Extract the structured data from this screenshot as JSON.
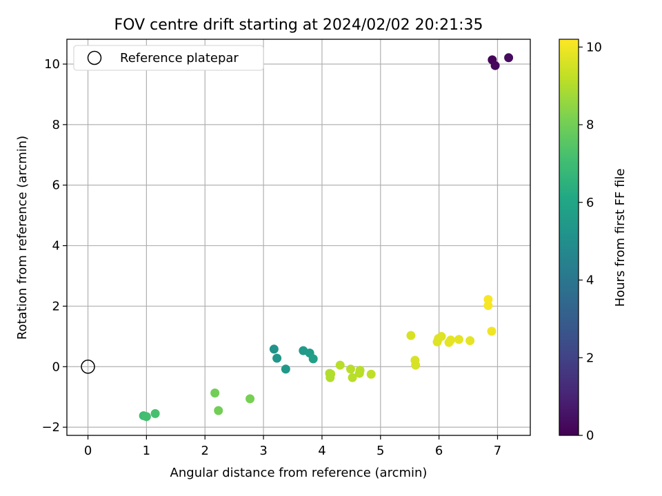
{
  "chart_data": {
    "type": "scatter",
    "title": "FOV centre drift starting at 2024/02/02 20:21:35",
    "xlabel": "Angular distance from reference (arcmin)",
    "ylabel": "Rotation from reference (arcmin)",
    "xlim": [
      -0.36,
      7.56
    ],
    "ylim": [
      -2.27,
      10.82
    ],
    "xticks": [
      0,
      1,
      2,
      3,
      4,
      5,
      6,
      7
    ],
    "yticks": [
      -2,
      0,
      2,
      4,
      6,
      8,
      10
    ],
    "grid": true,
    "legend": {
      "placement": "upper-left",
      "entries": [
        {
          "label": "Reference platepar",
          "marker": "open-circle"
        }
      ]
    },
    "reference_point": {
      "x": 0,
      "y": 0
    },
    "colorbar": {
      "label": "Hours from first FF file",
      "range": [
        0,
        10.2
      ],
      "ticks": [
        0,
        2,
        4,
        6,
        8,
        10
      ],
      "colormap": "viridis"
    },
    "points": [
      {
        "x": 6.91,
        "y": 10.14,
        "c": 0.1
      },
      {
        "x": 6.96,
        "y": 9.95,
        "c": 0.2
      },
      {
        "x": 7.19,
        "y": 10.21,
        "c": 0.3
      },
      {
        "x": 3.18,
        "y": 0.58,
        "c": 5.2
      },
      {
        "x": 3.23,
        "y": 0.28,
        "c": 5.3
      },
      {
        "x": 3.38,
        "y": -0.08,
        "c": 5.4
      },
      {
        "x": 3.68,
        "y": 0.53,
        "c": 5.5
      },
      {
        "x": 3.79,
        "y": 0.45,
        "c": 5.6
      },
      {
        "x": 3.85,
        "y": 0.26,
        "c": 5.7
      },
      {
        "x": 0.95,
        "y": -1.62,
        "c": 7.0
      },
      {
        "x": 1.0,
        "y": -1.65,
        "c": 7.1
      },
      {
        "x": 1.15,
        "y": -1.55,
        "c": 7.2
      },
      {
        "x": 2.17,
        "y": -0.87,
        "c": 8.0
      },
      {
        "x": 2.23,
        "y": -1.45,
        "c": 8.0
      },
      {
        "x": 2.77,
        "y": -1.06,
        "c": 8.1
      },
      {
        "x": 4.13,
        "y": -0.22,
        "c": 9.0
      },
      {
        "x": 4.14,
        "y": -0.36,
        "c": 9.0
      },
      {
        "x": 4.15,
        "y": -0.24,
        "c": 9.0
      },
      {
        "x": 4.31,
        "y": 0.05,
        "c": 9.1
      },
      {
        "x": 4.49,
        "y": -0.08,
        "c": 9.1
      },
      {
        "x": 4.52,
        "y": -0.36,
        "c": 9.1
      },
      {
        "x": 4.64,
        "y": -0.22,
        "c": 9.1
      },
      {
        "x": 4.65,
        "y": -0.12,
        "c": 9.1
      },
      {
        "x": 4.84,
        "y": -0.25,
        "c": 9.2
      },
      {
        "x": 5.52,
        "y": 1.03,
        "c": 9.6
      },
      {
        "x": 5.59,
        "y": 0.21,
        "c": 9.6
      },
      {
        "x": 5.6,
        "y": 0.05,
        "c": 9.6
      },
      {
        "x": 5.97,
        "y": 0.82,
        "c": 9.7
      },
      {
        "x": 5.99,
        "y": 0.93,
        "c": 9.7
      },
      {
        "x": 6.04,
        "y": 1.0,
        "c": 9.7
      },
      {
        "x": 6.17,
        "y": 0.8,
        "c": 9.8
      },
      {
        "x": 6.2,
        "y": 0.88,
        "c": 9.8
      },
      {
        "x": 6.34,
        "y": 0.9,
        "c": 9.8
      },
      {
        "x": 6.53,
        "y": 0.86,
        "c": 9.8
      },
      {
        "x": 6.84,
        "y": 2.22,
        "c": 10.1
      },
      {
        "x": 6.84,
        "y": 2.02,
        "c": 10.1
      },
      {
        "x": 6.9,
        "y": 1.17,
        "c": 10.0
      }
    ]
  }
}
